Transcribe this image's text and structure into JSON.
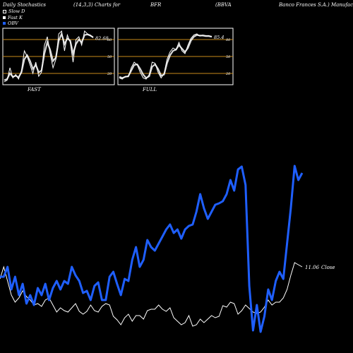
{
  "header": {
    "c1": "Daily Stochastics",
    "c2": "(14,3,3) Charts for",
    "c3": "BFR",
    "c4": "(BBVA",
    "c5": "Banco  Frances S.A.) Manufacturing"
  },
  "legend": {
    "slow_d": "Slow  D",
    "fast_k": "Fast K",
    "obv": "OBV"
  },
  "colors": {
    "obv": "#1f5fff",
    "close": "#ffffff",
    "gridline": "#c88a1a",
    "panel_border": "#ffffff",
    "background": "#000000"
  },
  "chart_data": [
    {
      "type": "line",
      "title": "FAST",
      "last_value_label": "82.68",
      "ylim": [
        0,
        100
      ],
      "levels": [
        80,
        50,
        20
      ],
      "level_labels": [
        "80",
        "50",
        "20"
      ],
      "series": [
        {
          "values": [
            5,
            8,
            30,
            12,
            18,
            10,
            25,
            60,
            50,
            35,
            20,
            40,
            15,
            22,
            70,
            85,
            55,
            30,
            45,
            90,
            95,
            60,
            88,
            75,
            40,
            80,
            85,
            70,
            95,
            90,
            88,
            83
          ]
        },
        {
          "values": [
            8,
            10,
            20,
            14,
            16,
            13,
            22,
            45,
            52,
            42,
            28,
            35,
            22,
            25,
            55,
            75,
            62,
            42,
            48,
            78,
            90,
            72,
            82,
            78,
            55,
            72,
            80,
            75,
            88,
            89,
            87,
            84
          ]
        }
      ]
    },
    {
      "type": "line",
      "title": "FULL",
      "last_value_label": "85.4",
      "ylim": [
        0,
        100
      ],
      "levels": [
        80,
        50,
        20
      ],
      "level_labels": [
        "80",
        "50",
        "20"
      ],
      "series": [
        {
          "values": [
            12,
            10,
            15,
            14,
            30,
            40,
            35,
            22,
            12,
            10,
            18,
            40,
            38,
            22,
            12,
            20,
            45,
            58,
            65,
            62,
            75,
            60,
            55,
            70,
            82,
            88,
            90,
            86,
            88,
            87,
            87,
            85
          ]
        },
        {
          "values": [
            14,
            12,
            14,
            15,
            25,
            35,
            36,
            28,
            18,
            12,
            15,
            32,
            36,
            28,
            16,
            18,
            38,
            52,
            60,
            62,
            70,
            64,
            58,
            65,
            78,
            85,
            88,
            87,
            87,
            86,
            86,
            85
          ]
        }
      ]
    },
    {
      "type": "line",
      "last_value_label": "11.06",
      "close_label": "Close",
      "series": [
        {
          "key": "obv",
          "values": [
            392,
            392,
            378,
            410,
            392,
            418,
            402,
            430,
            418,
            432,
            408,
            418,
            402,
            425,
            408,
            398,
            410,
            398,
            402,
            378,
            390,
            398,
            415,
            412,
            425,
            405,
            400,
            425,
            425,
            392,
            385,
            402,
            418,
            395,
            398,
            368,
            350,
            378,
            368,
            340,
            350,
            355,
            345,
            335,
            325,
            318,
            330,
            325,
            338,
            325,
            320,
            318,
            300,
            275,
            295,
            310,
            300,
            290,
            288,
            285,
            275,
            255,
            270,
            240,
            236,
            262,
            405,
            468,
            432,
            470,
            448,
            410,
            425,
            398,
            385,
            395,
            345,
            295,
            235,
            255,
            245
          ]
        },
        {
          "key": "close",
          "values": [
            395,
            378,
            398,
            418,
            428,
            422,
            412,
            420,
            425,
            432,
            430,
            434,
            425,
            422,
            432,
            442,
            436,
            440,
            442,
            436,
            430,
            441,
            445,
            441,
            432,
            440,
            442,
            434,
            430,
            432,
            448,
            453,
            460,
            450,
            445,
            455,
            447,
            447,
            452,
            440,
            438,
            438,
            432,
            438,
            441,
            436,
            450,
            455,
            460,
            457,
            447,
            462,
            460,
            452,
            457,
            452,
            447,
            450,
            448,
            433,
            435,
            428,
            430,
            445,
            440,
            432,
            437,
            442,
            444,
            442,
            435,
            425,
            432,
            428,
            428,
            422,
            410,
            390,
            372,
            375,
            378
          ]
        }
      ]
    }
  ]
}
